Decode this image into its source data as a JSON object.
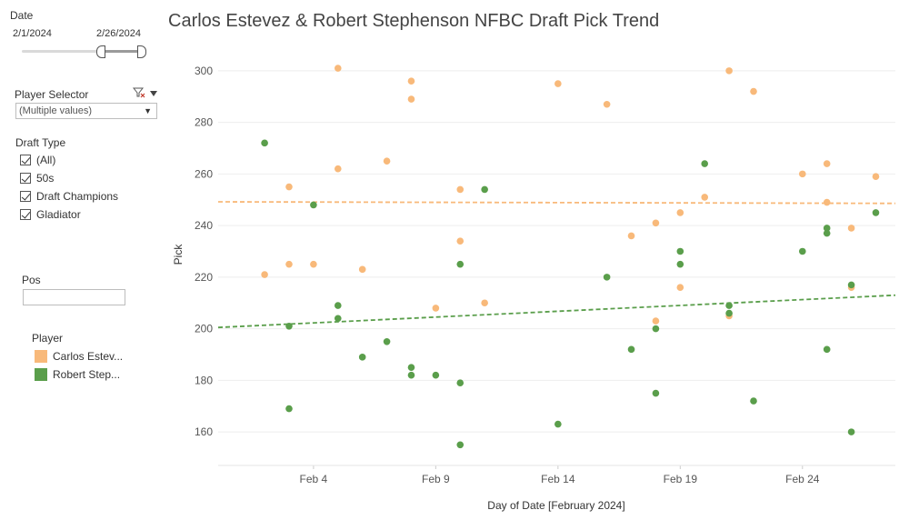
{
  "filters": {
    "date": {
      "label": "Date",
      "start": "2/1/2024",
      "end": "2/26/2024"
    },
    "player_selector": {
      "label": "Player Selector",
      "value": "(Multiple values)"
    },
    "draft_type": {
      "label": "Draft Type",
      "options": [
        "(All)",
        "50s",
        "Draft Champions",
        "Gladiator"
      ]
    },
    "pos": {
      "label": "Pos",
      "value": ""
    }
  },
  "legend": {
    "title": "Player",
    "items": [
      {
        "label": "Carlos Estev...",
        "color": "#f8b97a"
      },
      {
        "label": "Robert Step...",
        "color": "#5a9e4b"
      }
    ]
  },
  "chart_data": {
    "type": "scatter",
    "title": "Carlos Estevez & Robert Stephenson NFBC Draft Pick Trend",
    "xlabel": "Day of Date [February 2024]",
    "ylabel": "Pick",
    "x_ticks": [
      "Feb 4",
      "Feb 9",
      "Feb 14",
      "Feb 19",
      "Feb 24"
    ],
    "x_tick_days": [
      4,
      9,
      14,
      19,
      24
    ],
    "xlim": [
      0.1,
      27.8
    ],
    "y_ticks": [
      160,
      180,
      200,
      220,
      240,
      260,
      280,
      300
    ],
    "ylim": [
      147,
      307
    ],
    "grid": true,
    "series": [
      {
        "name": "Carlos Estev...",
        "color": "#f8b97a",
        "trend": [
          [
            0.1,
            249.2
          ],
          [
            27.8,
            248.6
          ]
        ],
        "points": [
          [
            2,
            221
          ],
          [
            3,
            255
          ],
          [
            3,
            225
          ],
          [
            4,
            225
          ],
          [
            5,
            301
          ],
          [
            5,
            262
          ],
          [
            6,
            223
          ],
          [
            7,
            265
          ],
          [
            8,
            296
          ],
          [
            8,
            289
          ],
          [
            9,
            208
          ],
          [
            10,
            254
          ],
          [
            10,
            234
          ],
          [
            11,
            210
          ],
          [
            14,
            295
          ],
          [
            16,
            287
          ],
          [
            17,
            236
          ],
          [
            18,
            241
          ],
          [
            18,
            203
          ],
          [
            19,
            245
          ],
          [
            19,
            216
          ],
          [
            20,
            251
          ],
          [
            21,
            300
          ],
          [
            21,
            205
          ],
          [
            22,
            292
          ],
          [
            24,
            260
          ],
          [
            25,
            264
          ],
          [
            25,
            249
          ],
          [
            26,
            239
          ],
          [
            26,
            216
          ],
          [
            27,
            259
          ]
        ]
      },
      {
        "name": "Robert Step...",
        "color": "#5a9e4b",
        "trend": [
          [
            0.1,
            200.5
          ],
          [
            27.8,
            213
          ]
        ],
        "points": [
          [
            2,
            272
          ],
          [
            3,
            201
          ],
          [
            3,
            169
          ],
          [
            4,
            248
          ],
          [
            5,
            209
          ],
          [
            5,
            204
          ],
          [
            6,
            189
          ],
          [
            7,
            195
          ],
          [
            8,
            185
          ],
          [
            8,
            182
          ],
          [
            9,
            182
          ],
          [
            10,
            225
          ],
          [
            10,
            179
          ],
          [
            10,
            155
          ],
          [
            11,
            254
          ],
          [
            14,
            163
          ],
          [
            16,
            220
          ],
          [
            17,
            192
          ],
          [
            18,
            200
          ],
          [
            18,
            175
          ],
          [
            19,
            230
          ],
          [
            19,
            225
          ],
          [
            20,
            264
          ],
          [
            21,
            209
          ],
          [
            21,
            206
          ],
          [
            22,
            172
          ],
          [
            24,
            230
          ],
          [
            25,
            239
          ],
          [
            25,
            237
          ],
          [
            25,
            192
          ],
          [
            26,
            217
          ],
          [
            26,
            160
          ],
          [
            27,
            245
          ]
        ]
      }
    ]
  }
}
